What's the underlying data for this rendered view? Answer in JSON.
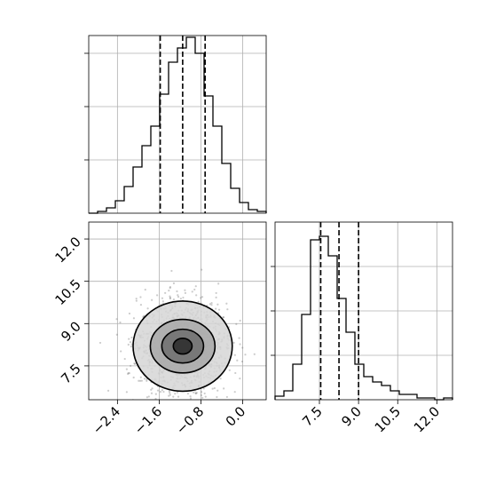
{
  "chart_data": [
    {
      "id": "marginal-x",
      "type": "histogram-step",
      "xlim": [
        -2.95,
        0.45
      ],
      "ylim": [
        0,
        1.0
      ],
      "yticks": [
        0.3,
        0.6,
        0.9
      ],
      "xticks": [
        -2.4,
        -1.6,
        -0.8,
        0.0
      ],
      "grid": true,
      "bin_edges": [
        -2.95,
        -2.78,
        -2.61,
        -2.44,
        -2.27,
        -2.1,
        -1.93,
        -1.76,
        -1.59,
        -1.42,
        -1.25,
        -1.08,
        -0.91,
        -0.74,
        -0.57,
        -0.4,
        -0.23,
        -0.06,
        0.11,
        0.28,
        0.45
      ],
      "counts": [
        0.0,
        0.01,
        0.03,
        0.07,
        0.15,
        0.26,
        0.38,
        0.49,
        0.67,
        0.85,
        0.93,
        0.99,
        0.9,
        0.66,
        0.49,
        0.28,
        0.14,
        0.06,
        0.02,
        0.01
      ],
      "quantiles": [
        -1.58,
        -1.15,
        -0.72
      ]
    },
    {
      "id": "joint",
      "type": "density-contour",
      "xlim": [
        -2.95,
        0.45
      ],
      "ylim": [
        6.3,
        12.6
      ],
      "xticks": [
        -2.4,
        -1.6,
        -0.8,
        0.0
      ],
      "xtick_labels": [
        "−2.4",
        "−1.6",
        "−0.8",
        "0.0"
      ],
      "yticks": [
        7.5,
        9.0,
        10.5,
        12.0
      ],
      "ytick_labels": [
        "7.5",
        "9.0",
        "10.5",
        "12.0"
      ],
      "grid": true,
      "center": [
        -1.15,
        8.2
      ],
      "spread": [
        0.42,
        0.75
      ],
      "contour_levels": [
        {
          "level": 0.12,
          "rx": 0.95,
          "ry": 1.6
        },
        {
          "level": 0.39,
          "rx": 0.62,
          "ry": 0.95
        },
        {
          "level": 0.68,
          "rx": 0.4,
          "ry": 0.6
        },
        {
          "level": 0.86,
          "rx": 0.18,
          "ry": 0.28
        }
      ]
    },
    {
      "id": "marginal-y",
      "type": "histogram-step",
      "xlim": [
        5.8,
        12.6
      ],
      "ylim": [
        0,
        1.0
      ],
      "yticks": [
        0.25,
        0.5,
        0.75
      ],
      "xticks": [
        7.5,
        9.0,
        10.5,
        12.0
      ],
      "xtick_labels": [
        "7.5",
        "9.0",
        "10.5",
        "12.0"
      ],
      "grid": true,
      "bin_edges": [
        5.8,
        6.14,
        6.48,
        6.82,
        7.16,
        7.5,
        7.84,
        8.18,
        8.52,
        8.86,
        9.2,
        9.54,
        9.88,
        10.22,
        10.56,
        10.9,
        11.24,
        11.58,
        11.92,
        12.26,
        12.6
      ],
      "counts": [
        0.02,
        0.05,
        0.2,
        0.48,
        0.9,
        0.92,
        0.81,
        0.57,
        0.38,
        0.2,
        0.13,
        0.1,
        0.08,
        0.05,
        0.03,
        0.03,
        0.01,
        0.01,
        0.0,
        0.01
      ],
      "quantiles": [
        7.55,
        8.25,
        9.0
      ]
    }
  ]
}
